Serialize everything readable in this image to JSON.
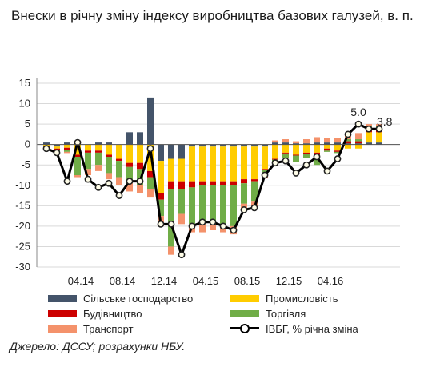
{
  "title": "Внески в річну зміну індексу виробництва базових галузей, в. п.",
  "source": "Джерело: ДССУ; розрахунки НБУ.",
  "colors": {
    "agriculture": "#44546a",
    "industry": "#ffcc00",
    "construction": "#cc0000",
    "trade": "#70ad47",
    "transport": "#f4926b",
    "ibvg": "#000000"
  },
  "legend": {
    "agriculture": "Сільське господарство",
    "industry": "Промисловість",
    "construction": "Будівництво",
    "trade": "Торгівля",
    "transport": "Транспорт",
    "ibvg": "ІВБГ, % річна зміна"
  },
  "chart_data": {
    "type": "bar",
    "stacked": true,
    "x_tick_labels": [
      "04.14",
      "08.14",
      "12.14",
      "04.15",
      "08.15",
      "12.15",
      "04.16"
    ],
    "y_ticks": [
      "15",
      "10",
      "5",
      "0",
      "-5",
      "-10",
      "-15",
      "-20",
      "-25",
      "-30"
    ],
    "ylim": [
      -30,
      15
    ],
    "grid": true,
    "annotations": [
      "5.0",
      "3.8"
    ],
    "series": [
      {
        "name": "Сільське господарство",
        "key": "agriculture",
        "values": [
          0.5,
          -0.5,
          0.5,
          0.5,
          0,
          0.5,
          0.5,
          0,
          3,
          3,
          11.5,
          -4,
          -3.5,
          -3.5,
          -0.5,
          -0.5,
          -0.5,
          -0.5,
          -0.5,
          -0.5,
          -0.5,
          -0.5,
          0.5,
          0.5,
          0.3,
          0.3,
          0.5,
          0.5,
          0.5,
          0.3,
          0.3,
          0.5,
          0.5
        ]
      },
      {
        "name": "Промисловість",
        "key": "industry",
        "values": [
          -0.5,
          -0.5,
          -0.8,
          -2.5,
          -1.5,
          -1.5,
          -2.5,
          -3.5,
          -4.5,
          -4.5,
          -6.5,
          -8,
          -5.5,
          -5.5,
          -8.5,
          -8.5,
          -8.5,
          -8.5,
          -8.5,
          -8,
          -8,
          -5.5,
          -3.5,
          -2,
          -2.5,
          -2,
          -2,
          -1,
          -1.5,
          -1,
          -1,
          2.5,
          2.5
        ]
      },
      {
        "name": "Будівництво",
        "key": "construction",
        "values": [
          -0.1,
          -0.3,
          -0.5,
          -0.5,
          -0.5,
          -0.5,
          -0.5,
          -0.5,
          -1,
          -1.5,
          -1.5,
          -1.5,
          -2,
          -2,
          -1.5,
          -1,
          -1,
          -1,
          -1,
          -1,
          -0.5,
          -0.3,
          -0.2,
          -0.2,
          -0.2,
          -0.3,
          -0.5,
          -0.5,
          -0.3,
          0.5,
          0.5,
          1,
          1
        ]
      },
      {
        "name": "Торгівля",
        "key": "trade",
        "values": [
          -0.3,
          -0.5,
          -0.5,
          -4.5,
          -4,
          -3,
          -4,
          -4,
          -4,
          -4,
          -3,
          -4,
          -14,
          -6,
          -9,
          -9.5,
          -9,
          -9.5,
          -10,
          -5,
          -5,
          -1.5,
          -0.8,
          -1,
          -1.5,
          -1,
          -2.5,
          -0.3,
          -0.3,
          0.5,
          0.5,
          0.5,
          0.5
        ]
      },
      {
        "name": "Транспорт",
        "key": "transport",
        "values": [
          -0.2,
          -0.3,
          -0.3,
          -0.5,
          -1.5,
          -1.5,
          -1.5,
          -2,
          -2,
          -2,
          -2,
          -2.5,
          -2,
          -2.5,
          -2,
          -2,
          -2,
          -2,
          -2,
          -1.5,
          -1.5,
          -0.5,
          0.5,
          0.8,
          0.5,
          1,
          1.3,
          1,
          1,
          1.5,
          1.5,
          0.5,
          0.5
        ]
      },
      {
        "name": "ІВБГ, % річна зміна",
        "key": "ibvg",
        "type": "line",
        "values": [
          -1,
          -2,
          -9,
          0.5,
          -8.5,
          -10.5,
          -9.5,
          -12.5,
          -9,
          -9,
          -1,
          -19.5,
          -19.5,
          -27,
          -20,
          -19,
          -19,
          -20,
          -21,
          -16,
          -15.5,
          -7.5,
          -4.5,
          -4,
          -7,
          -5,
          -3,
          -6.5,
          -3.5,
          2.5,
          5,
          3.8,
          3.8
        ]
      }
    ]
  }
}
